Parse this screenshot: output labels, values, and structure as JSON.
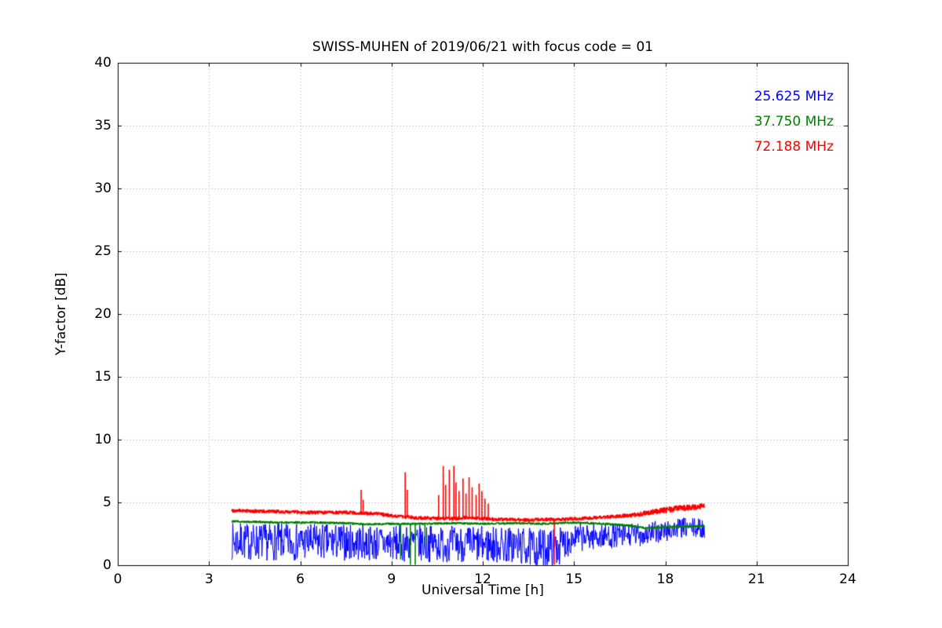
{
  "chart_data": {
    "type": "line",
    "title": "SWISS-MUHEN of 2019/06/21 with focus code = 01",
    "xlabel": "Universal Time [h]",
    "ylabel": "Y-factor [dB]",
    "xlim": [
      0,
      24
    ],
    "ylim": [
      0,
      40
    ],
    "xticks": [
      0,
      3,
      6,
      9,
      12,
      15,
      18,
      21,
      24
    ],
    "yticks": [
      0,
      5,
      10,
      15,
      20,
      25,
      30,
      35,
      40
    ],
    "grid": true,
    "grid_style": "dotted",
    "grid_color": "#aaaaaa",
    "legend": {
      "position": "upper right",
      "frame": false,
      "entries": [
        {
          "label": "25.625 MHz",
          "color": "#0000ff"
        },
        {
          "label": "37.750 MHz",
          "color": "#008000"
        },
        {
          "label": "72.188 MHz",
          "color": "#ff0000"
        }
      ]
    },
    "series": [
      {
        "name": "25.625 MHz",
        "color": "#0000ff",
        "style": "noisy-band",
        "x_range": [
          3.75,
          19.3
        ],
        "step": 0.015,
        "seed": 7,
        "line_width": 1,
        "mean_points": [
          [
            3.75,
            1.9
          ],
          [
            5,
            1.85
          ],
          [
            7,
            1.85
          ],
          [
            9,
            1.75
          ],
          [
            11,
            1.7
          ],
          [
            13,
            1.6
          ],
          [
            13.8,
            1.3
          ],
          [
            14.5,
            1.5
          ],
          [
            15,
            2.2
          ],
          [
            16,
            2.3
          ],
          [
            17,
            2.4
          ],
          [
            18,
            2.7
          ],
          [
            18.6,
            3.0
          ],
          [
            19.3,
            2.9
          ]
        ],
        "amp_points": [
          [
            3.75,
            1.5
          ],
          [
            9,
            1.45
          ],
          [
            13,
            1.5
          ],
          [
            13.8,
            1.6
          ],
          [
            14.5,
            1.5
          ],
          [
            15,
            1.1
          ],
          [
            16,
            1.0
          ],
          [
            17,
            0.95
          ],
          [
            18,
            0.9
          ],
          [
            18.6,
            0.8
          ],
          [
            19.3,
            0.8
          ]
        ],
        "spikes": []
      },
      {
        "name": "37.750 MHz",
        "color": "#008000",
        "style": "noisy-line",
        "x_range": [
          3.75,
          19.3
        ],
        "step": 0.01,
        "seed": 12,
        "line_width": 1.6,
        "mean_points": [
          [
            3.75,
            3.5
          ],
          [
            4.5,
            3.45
          ],
          [
            5.5,
            3.4
          ],
          [
            6.5,
            3.4
          ],
          [
            7.5,
            3.35
          ],
          [
            8.2,
            3.25
          ],
          [
            9,
            3.3
          ],
          [
            10,
            3.3
          ],
          [
            11,
            3.35
          ],
          [
            12,
            3.3
          ],
          [
            13,
            3.35
          ],
          [
            14,
            3.3
          ],
          [
            15,
            3.4
          ],
          [
            16,
            3.3
          ],
          [
            16.8,
            3.15
          ],
          [
            17.4,
            2.95
          ],
          [
            18,
            3.05
          ],
          [
            18.6,
            3.1
          ],
          [
            19.3,
            3.1
          ]
        ],
        "amp_points": [
          [
            3.75,
            0.07
          ],
          [
            19.3,
            0.07
          ]
        ],
        "spikes": [
          [
            9.3,
            0.45
          ],
          [
            9.62,
            0.03
          ],
          [
            9.78,
            0.03
          ],
          [
            10.1,
            1.6
          ]
        ]
      },
      {
        "name": "72.188 MHz",
        "color": "#ff0000",
        "style": "noisy-line",
        "x_range": [
          3.75,
          19.3
        ],
        "step": 0.01,
        "seed": 99,
        "line_width": 1.6,
        "mean_points": [
          [
            3.75,
            4.35
          ],
          [
            4.5,
            4.3
          ],
          [
            5.5,
            4.25
          ],
          [
            6.5,
            4.2
          ],
          [
            7.5,
            4.2
          ],
          [
            8.5,
            4.1
          ],
          [
            9,
            3.95
          ],
          [
            9.5,
            3.85
          ],
          [
            10,
            3.75
          ],
          [
            11,
            3.7
          ],
          [
            11.5,
            3.8
          ],
          [
            12,
            3.7
          ],
          [
            12.5,
            3.65
          ],
          [
            13.5,
            3.6
          ],
          [
            14.5,
            3.65
          ],
          [
            15.5,
            3.75
          ],
          [
            16.5,
            3.9
          ],
          [
            17,
            4.0
          ],
          [
            17.5,
            4.2
          ],
          [
            18,
            4.4
          ],
          [
            18.5,
            4.55
          ],
          [
            19,
            4.65
          ],
          [
            19.3,
            4.7
          ]
        ],
        "amp_points": [
          [
            3.75,
            0.13
          ],
          [
            16.5,
            0.13
          ],
          [
            17.5,
            0.2
          ],
          [
            18,
            0.25
          ],
          [
            19.3,
            0.22
          ]
        ],
        "spikes": [
          [
            8.0,
            6.0
          ],
          [
            8.07,
            5.2
          ],
          [
            9.45,
            7.4
          ],
          [
            9.52,
            6.0
          ],
          [
            10.55,
            5.6
          ],
          [
            10.7,
            7.9
          ],
          [
            10.78,
            6.4
          ],
          [
            10.9,
            7.6
          ],
          [
            11.05,
            7.9
          ],
          [
            11.12,
            6.6
          ],
          [
            11.22,
            5.9
          ],
          [
            11.35,
            6.9
          ],
          [
            11.45,
            5.7
          ],
          [
            11.55,
            7.0
          ],
          [
            11.65,
            6.2
          ],
          [
            11.78,
            5.6
          ],
          [
            11.88,
            6.5
          ],
          [
            11.97,
            5.9
          ],
          [
            12.07,
            5.3
          ],
          [
            12.18,
            4.9
          ],
          [
            14.35,
            0.05
          ]
        ]
      }
    ]
  }
}
